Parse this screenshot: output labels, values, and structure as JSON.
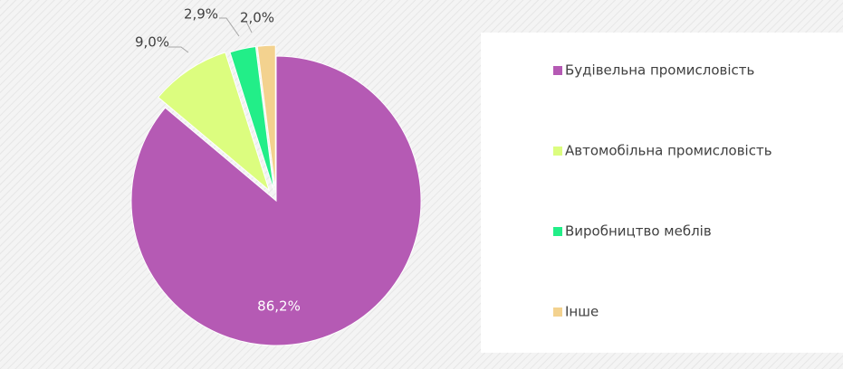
{
  "chart_data": {
    "type": "pie",
    "categories": [
      "Будівельна промисловість",
      "Автомобільна промисловість",
      "Виробництво меблів",
      "Інше"
    ],
    "values": [
      86.2,
      9.0,
      2.9,
      2.0
    ],
    "value_labels": [
      "86,2%",
      "9,0%",
      "2,9%",
      "2,0%"
    ],
    "colors": [
      "#b55ab4",
      "#dcfd7f",
      "#22ee88",
      "#f3d28f"
    ],
    "legend": "right"
  }
}
